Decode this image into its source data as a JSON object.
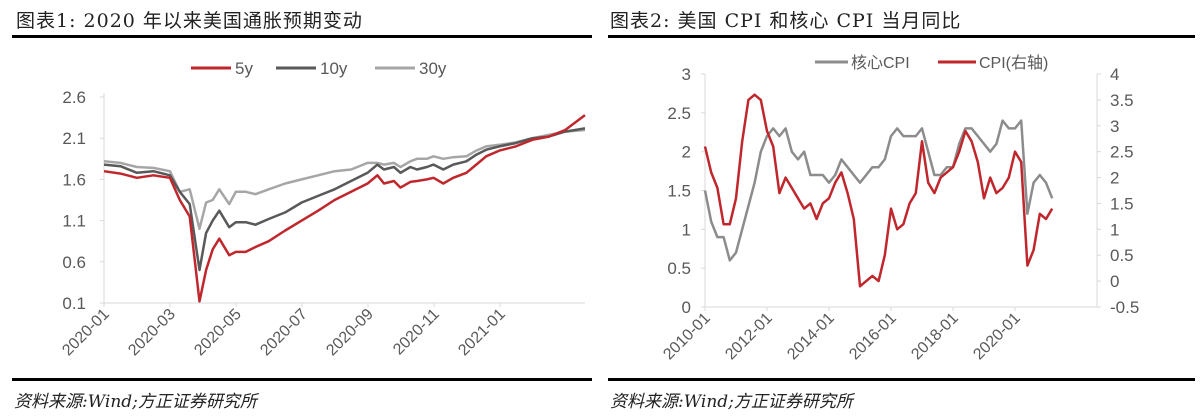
{
  "left": {
    "title": "图表1:  2020 年以来美国通胀预期变动",
    "source": "资料来源:Wind;方正证券研究所"
  },
  "right": {
    "title": "图表2:  美国 CPI 和核心 CPI 当月同比",
    "source": "资料来源:Wind;方正证券研究所"
  },
  "colors": {
    "red": "#c0272d",
    "dark_gray": "#595959",
    "light_gray": "#a6a6a6",
    "mid_gray": "#8c8c8c",
    "axis": "#d9d9d9",
    "tick_text": "#595959"
  },
  "chart_data": [
    {
      "type": "line",
      "title": "2020 年以来美国通胀预期变动",
      "xlabel": "",
      "ylabel": "",
      "ylim": [
        0.1,
        2.6
      ],
      "yticks": [
        "0.1",
        "0.6",
        "1.1",
        "1.6",
        "2.1",
        "2.6"
      ],
      "xticks": [
        "2020-01",
        "2020-03",
        "2020-05",
        "2020-07",
        "2020-09",
        "2020-11",
        "2021-01"
      ],
      "legend": [
        "5y",
        "10y",
        "30y"
      ],
      "legend_position": "top",
      "grid": false,
      "x": [
        0,
        0.5,
        1,
        1.5,
        2,
        2.3,
        2.6,
        2.9,
        3.1,
        3.3,
        3.5,
        3.8,
        4.0,
        4.3,
        4.6,
        5.0,
        5.5,
        6.0,
        6.5,
        7.0,
        7.5,
        8.0,
        8.3,
        8.5,
        8.8,
        9.0,
        9.3,
        9.5,
        9.8,
        10.0,
        10.3,
        10.6,
        11.0,
        11.3,
        11.6,
        12.0,
        12.5,
        13.0,
        13.5,
        14.0,
        14.6
      ],
      "series": [
        {
          "name": "5y",
          "values": [
            1.7,
            1.67,
            1.62,
            1.65,
            1.62,
            1.35,
            1.15,
            0.12,
            0.5,
            0.75,
            0.88,
            0.68,
            0.72,
            0.72,
            0.78,
            0.85,
            0.98,
            1.1,
            1.22,
            1.35,
            1.45,
            1.55,
            1.65,
            1.55,
            1.58,
            1.5,
            1.57,
            1.58,
            1.6,
            1.62,
            1.55,
            1.62,
            1.68,
            1.78,
            1.88,
            1.95,
            2.0,
            2.08,
            2.12,
            2.2,
            2.38
          ]
        },
        {
          "name": "10y",
          "values": [
            1.78,
            1.76,
            1.68,
            1.7,
            1.65,
            1.45,
            1.3,
            0.5,
            0.95,
            1.1,
            1.22,
            1.02,
            1.08,
            1.08,
            1.05,
            1.12,
            1.2,
            1.32,
            1.4,
            1.48,
            1.58,
            1.68,
            1.78,
            1.72,
            1.75,
            1.68,
            1.75,
            1.72,
            1.75,
            1.78,
            1.72,
            1.78,
            1.82,
            1.9,
            1.96,
            2.0,
            2.04,
            2.1,
            2.12,
            2.18,
            2.22
          ]
        },
        {
          "name": "30y",
          "values": [
            1.82,
            1.8,
            1.75,
            1.74,
            1.7,
            1.45,
            1.48,
            1.0,
            1.32,
            1.35,
            1.48,
            1.3,
            1.45,
            1.45,
            1.42,
            1.48,
            1.55,
            1.6,
            1.65,
            1.7,
            1.72,
            1.8,
            1.8,
            1.78,
            1.8,
            1.75,
            1.82,
            1.85,
            1.85,
            1.88,
            1.85,
            1.87,
            1.88,
            1.95,
            2.0,
            2.02,
            2.05,
            2.1,
            2.14,
            2.18,
            2.2
          ]
        }
      ]
    },
    {
      "type": "line",
      "title": "美国 CPI 和核心 CPI 当月同比",
      "xlabel": "",
      "ylabel": "",
      "ylim": [
        0,
        3
      ],
      "y2lim": [
        -0.5,
        4
      ],
      "yticks": [
        "0",
        "0.5",
        "1",
        "1.5",
        "2",
        "2.5",
        "3"
      ],
      "y2ticks": [
        "-0.5",
        "0",
        "0.5",
        "1",
        "1.5",
        "2",
        "2.5",
        "3",
        "3.5",
        "4"
      ],
      "xticks": [
        "2010-01",
        "2012-01",
        "2014-01",
        "2016-01",
        "2018-01",
        "2020-01"
      ],
      "legend": [
        "核心CPI",
        "CPI(右轴)"
      ],
      "legend_position": "top",
      "grid": false,
      "x": [
        2010.0,
        2010.2,
        2010.4,
        2010.6,
        2010.8,
        2011.0,
        2011.2,
        2011.4,
        2011.6,
        2011.8,
        2012.0,
        2012.2,
        2012.4,
        2012.6,
        2012.8,
        2013.0,
        2013.2,
        2013.4,
        2013.6,
        2013.8,
        2014.0,
        2014.2,
        2014.4,
        2014.6,
        2014.8,
        2015.0,
        2015.2,
        2015.4,
        2015.6,
        2015.8,
        2016.0,
        2016.2,
        2016.4,
        2016.6,
        2016.8,
        2017.0,
        2017.2,
        2017.4,
        2017.6,
        2017.8,
        2018.0,
        2018.2,
        2018.4,
        2018.6,
        2018.8,
        2019.0,
        2019.2,
        2019.4,
        2019.6,
        2019.8,
        2020.0,
        2020.2,
        2020.4,
        2020.6,
        2020.8,
        2021.0,
        2021.2
      ],
      "series": [
        {
          "name": "核心CPI",
          "axis": "left",
          "values": [
            1.5,
            1.1,
            0.9,
            0.9,
            0.6,
            0.7,
            1.0,
            1.3,
            1.6,
            2.0,
            2.2,
            2.3,
            2.2,
            2.3,
            2.0,
            1.9,
            2.0,
            1.7,
            1.7,
            1.7,
            1.6,
            1.7,
            1.9,
            1.8,
            1.7,
            1.6,
            1.7,
            1.8,
            1.8,
            1.9,
            2.2,
            2.3,
            2.2,
            2.2,
            2.2,
            2.3,
            2.0,
            1.7,
            1.7,
            1.8,
            1.8,
            2.1,
            2.3,
            2.3,
            2.2,
            2.1,
            2.0,
            2.1,
            2.4,
            2.3,
            2.3,
            2.4,
            1.2,
            1.6,
            1.7,
            1.6,
            1.4
          ]
        },
        {
          "name": "CPI(右轴)",
          "axis": "right",
          "values": [
            2.6,
            2.1,
            1.8,
            1.1,
            1.1,
            1.6,
            2.7,
            3.5,
            3.6,
            3.5,
            2.9,
            2.6,
            1.7,
            2.0,
            1.8,
            1.6,
            1.4,
            1.5,
            1.2,
            1.5,
            1.6,
            1.9,
            2.1,
            1.7,
            1.2,
            -0.1,
            0.0,
            0.1,
            0.0,
            0.5,
            1.4,
            1.0,
            1.1,
            1.5,
            1.7,
            2.7,
            1.9,
            1.7,
            2.0,
            2.1,
            2.2,
            2.5,
            2.9,
            2.7,
            2.3,
            1.6,
            2.0,
            1.7,
            1.8,
            2.0,
            2.5,
            2.3,
            0.3,
            0.6,
            1.3,
            1.2,
            1.4
          ]
        }
      ]
    }
  ]
}
